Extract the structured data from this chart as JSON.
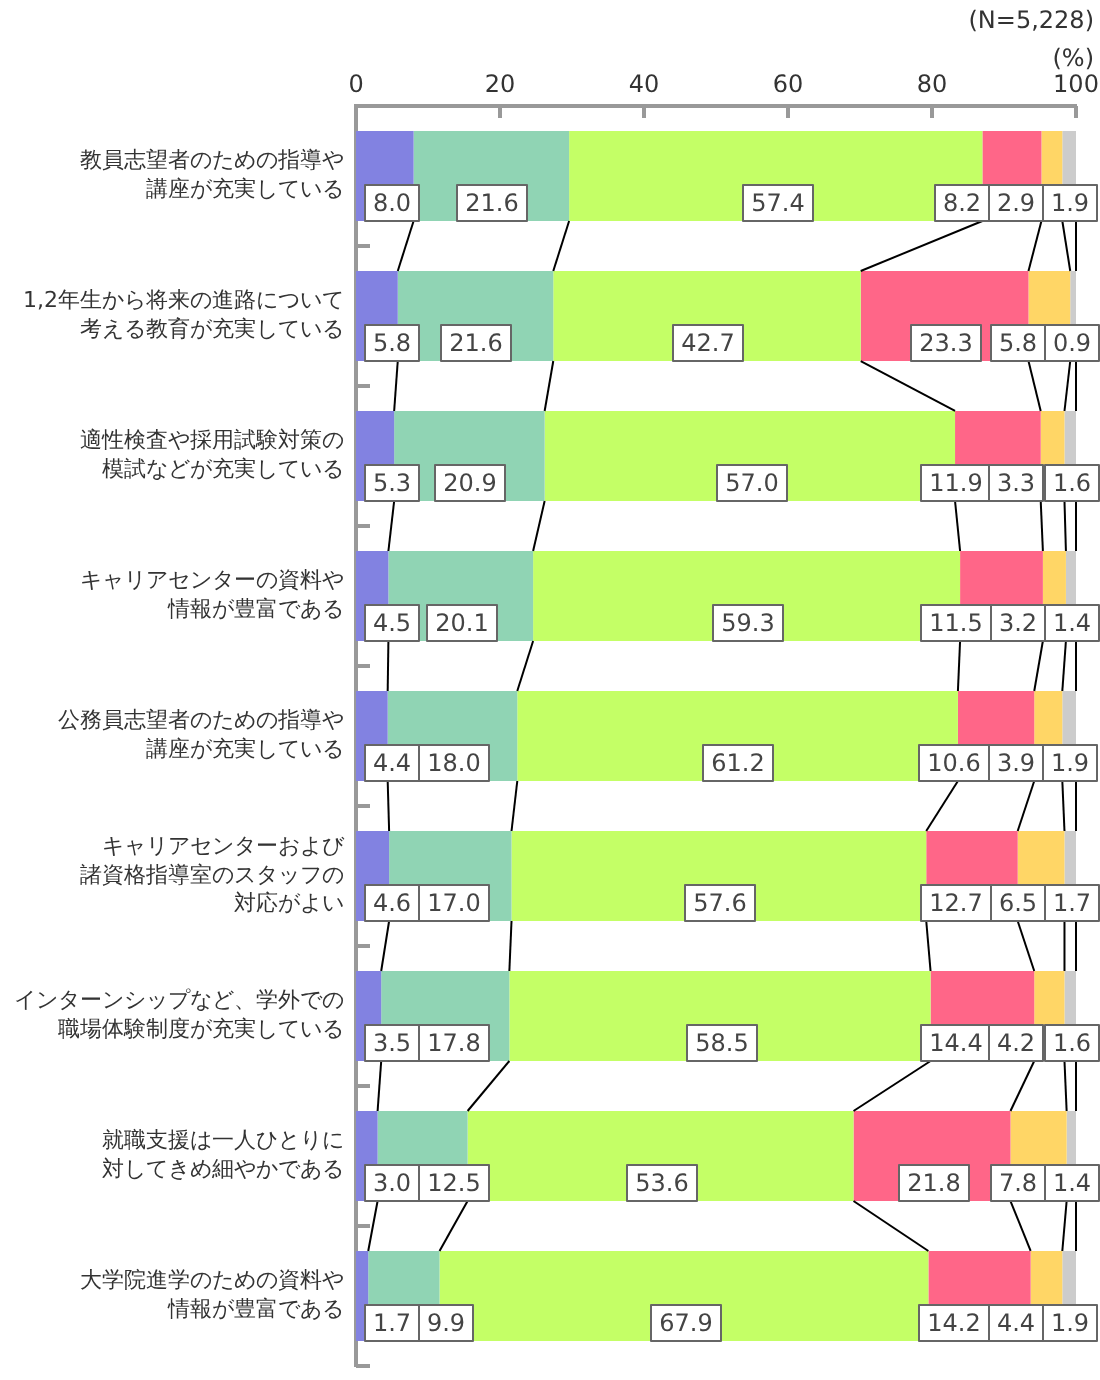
{
  "chart_data": {
    "type": "bar",
    "orientation": "horizontal",
    "stacked": true,
    "annotations": [
      "(N=5,228)"
    ],
    "xlabel": "(%)",
    "categories": [
      "教員志望者のための指導や講座が充実している",
      "1,2年生から将来の進路について考える教育が充実している",
      "適性検査や採用試験対策の模試などが充実している",
      "キャリアセンターの資料や情報が豊富である",
      "公務員志望者のための指導や講座が充実している",
      "キャリアセンターおよび諸資格指導室のスタッフの対応がよい",
      "インターンシップなど、学外での職場体験制度が充実している",
      "就職支援は一人ひとりに対してきめ細やかである",
      "大学院進学のための資料や情報が豊富である"
    ],
    "series": [
      {
        "color": "#8282e1",
        "values": [
          8.0,
          5.8,
          5.3,
          4.5,
          4.4,
          4.6,
          3.5,
          3.0,
          1.7
        ],
        "value_labels": [
          "8.0",
          "5.8",
          "5.3",
          "4.5",
          "4.4",
          "4.6",
          "3.5",
          "3.0",
          "1.7"
        ]
      },
      {
        "color": "#90d4b4",
        "values": [
          21.6,
          21.6,
          20.9,
          20.1,
          18.0,
          17.0,
          17.8,
          12.5,
          9.9
        ],
        "value_labels": [
          "21.6",
          "21.6",
          "20.9",
          "20.1",
          "18.0",
          "17.0",
          "17.8",
          "12.5",
          "9.9"
        ]
      },
      {
        "color": "#c4ff66",
        "values": [
          57.4,
          42.7,
          57.0,
          59.3,
          61.2,
          57.6,
          58.5,
          53.6,
          67.9
        ],
        "value_labels": [
          "57.4",
          "42.7",
          "57.0",
          "59.3",
          "61.2",
          "57.6",
          "58.5",
          "53.6",
          "67.9"
        ]
      },
      {
        "color": "#ff6688",
        "values": [
          8.2,
          23.3,
          11.9,
          11.5,
          10.6,
          12.7,
          14.4,
          21.8,
          14.2
        ],
        "value_labels": [
          "8.2",
          "23.3",
          "11.9",
          "11.5",
          "10.6",
          "12.7",
          "14.4",
          "21.8",
          "14.2"
        ]
      },
      {
        "color": "#ffd666",
        "values": [
          2.9,
          5.8,
          3.3,
          3.2,
          3.9,
          6.5,
          4.2,
          7.8,
          4.4
        ],
        "value_labels": [
          "2.9",
          "5.8",
          "3.3",
          "3.2",
          "3.9",
          "6.5",
          "4.2",
          "7.8",
          "4.4"
        ]
      },
      {
        "color": "#cccccc",
        "values": [
          1.9,
          0.9,
          1.6,
          1.4,
          1.9,
          1.7,
          1.6,
          1.4,
          1.9
        ],
        "value_labels": [
          "1.9",
          "0.9",
          "1.6",
          "1.4",
          "1.9",
          "1.7",
          "1.6",
          "1.4",
          "1.9"
        ]
      }
    ],
    "xlim": [
      0,
      100
    ],
    "xticks": [
      0,
      20,
      40,
      60,
      80,
      100
    ]
  }
}
